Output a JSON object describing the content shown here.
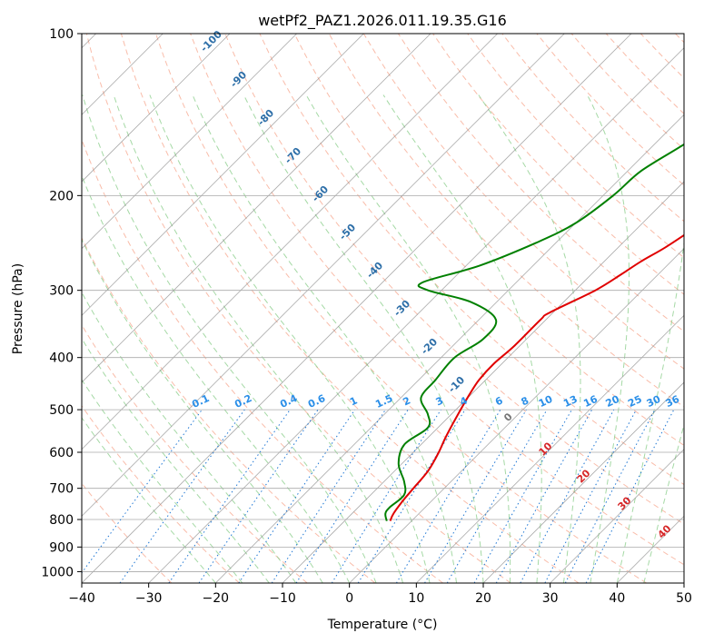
{
  "chart_data": {
    "type": "line",
    "title": "wetPf2_PAZ1.2026.011.19.35.G16",
    "xlabel": "Temperature (°C)",
    "ylabel": "Pressure (hPa)",
    "xlim": [
      -40,
      50
    ],
    "ylim": [
      1050,
      100
    ],
    "y_scale": "log",
    "x_ticks": [
      -40,
      -30,
      -20,
      -10,
      0,
      10,
      20,
      30,
      40,
      50
    ],
    "y_ticks": [
      100,
      200,
      300,
      400,
      500,
      600,
      700,
      800,
      900,
      1000
    ],
    "grid": true,
    "skew": "skew-T log-P diagram",
    "series": [
      {
        "role": "temperature",
        "color": "#e00000",
        "points": [
          [
            -3.2,
            805
          ],
          [
            -3.8,
            780
          ],
          [
            -4.3,
            740
          ],
          [
            -4.6,
            700
          ],
          [
            -5.0,
            650
          ],
          [
            -6.2,
            600
          ],
          [
            -7.5,
            560
          ],
          [
            -9.0,
            510
          ],
          [
            -10.2,
            470
          ],
          [
            -11.0,
            440
          ],
          [
            -11.2,
            410
          ],
          [
            -10.8,
            380
          ],
          [
            -10.8,
            340
          ],
          [
            -10.5,
            330
          ],
          [
            -7.0,
            300
          ],
          [
            -5.5,
            280
          ],
          [
            -4.5,
            265
          ],
          [
            -3.0,
            250
          ],
          [
            -1.5,
            230
          ],
          [
            0.0,
            210
          ],
          [
            1.5,
            190
          ],
          [
            3.0,
            170
          ],
          [
            4.5,
            155
          ],
          [
            6.0,
            140
          ],
          [
            7.5,
            125
          ],
          [
            8.5,
            115
          ],
          [
            9.5,
            105
          ],
          [
            10.0,
            100
          ]
        ]
      },
      {
        "role": "dewpoint",
        "color": "#008000",
        "points": [
          [
            -3.7,
            805
          ],
          [
            -5.0,
            780
          ],
          [
            -5.3,
            760
          ],
          [
            -5.0,
            720
          ],
          [
            -7.0,
            680
          ],
          [
            -10.5,
            630
          ],
          [
            -12.5,
            580
          ],
          [
            -11.5,
            540
          ],
          [
            -13.5,
            510
          ],
          [
            -17.0,
            475
          ],
          [
            -17.5,
            440
          ],
          [
            -18.0,
            400
          ],
          [
            -16.5,
            370
          ],
          [
            -17.5,
            340
          ],
          [
            -24.0,
            315
          ],
          [
            -32.0,
            300
          ],
          [
            -34.0,
            290
          ],
          [
            -28.0,
            270
          ],
          [
            -23.0,
            245
          ],
          [
            -20.0,
            225
          ],
          [
            -18.5,
            200
          ],
          [
            -18.0,
            180
          ],
          [
            -15.5,
            160
          ],
          [
            -15.0,
            150
          ],
          [
            -16.5,
            140
          ],
          [
            -15.0,
            130
          ],
          [
            -11.0,
            120
          ],
          [
            -9.5,
            110
          ],
          [
            -7.0,
            100
          ]
        ]
      }
    ],
    "dry_adiabat_labels": [
      "-100",
      "-90",
      "-80",
      "-70",
      "-60",
      "-50",
      "-40",
      "-30",
      "-20",
      "-10"
    ],
    "mixing_ratio_labels": [
      "0.1",
      "0.2",
      "0.4",
      "0.6",
      "1",
      "1.5",
      "2",
      "3",
      "4",
      "6",
      "8",
      "10",
      "13",
      "16",
      "20",
      "25",
      "30",
      "36"
    ],
    "moist_adiabat_labels": [
      "0",
      "10",
      "20",
      "30",
      "40"
    ],
    "colors": {
      "dry_adiabat_line": "#f7a58c",
      "moist_adiabat_line": "#8fcf8f",
      "isotherm_line": "#888888",
      "isobar_line": "#aaaaaa",
      "mixing_ratio_line": "#1f77d4",
      "dry_label": "#2e6fa8",
      "mixing_label": "#2b8fe8",
      "moist_label_warm": "#d62728",
      "moist_label_zero": "#777777"
    }
  }
}
